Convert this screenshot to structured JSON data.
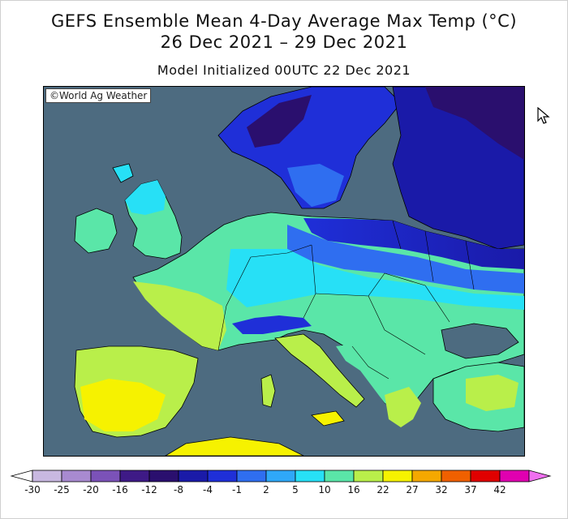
{
  "header": {
    "title": "GEFS Ensemble Mean 4-Day Average Max Temp (°C)",
    "date_range": "26 Dec 2021 – 29 Dec 2021",
    "model_init": "Model Initialized 00UTC 22 Dec 2021"
  },
  "map": {
    "credit": "©World Ag Weather",
    "colors": {
      "sea": "#4d6b80",
      "land_outline": "#000000"
    }
  },
  "legend": {
    "ticks": [
      "-30",
      "-25",
      "-20",
      "-16",
      "-12",
      "-8",
      "-4",
      "-1",
      "2",
      "5",
      "10",
      "16",
      "22",
      "27",
      "32",
      "37",
      "42"
    ],
    "colors": [
      "#ffffff",
      "#c8b8e0",
      "#a88ad0",
      "#7b52b8",
      "#3e1a86",
      "#2a0f6e",
      "#1a1aa8",
      "#1f2fd8",
      "#2f6ef0",
      "#2fa8f8",
      "#27e0f6",
      "#5ae6a8",
      "#b9ef4a",
      "#f6f200",
      "#f5a800",
      "#f06000",
      "#e00000",
      "#e000b0",
      "#f070f0"
    ]
  },
  "ui": {
    "cursor_icon": "mouse-pointer-icon"
  }
}
